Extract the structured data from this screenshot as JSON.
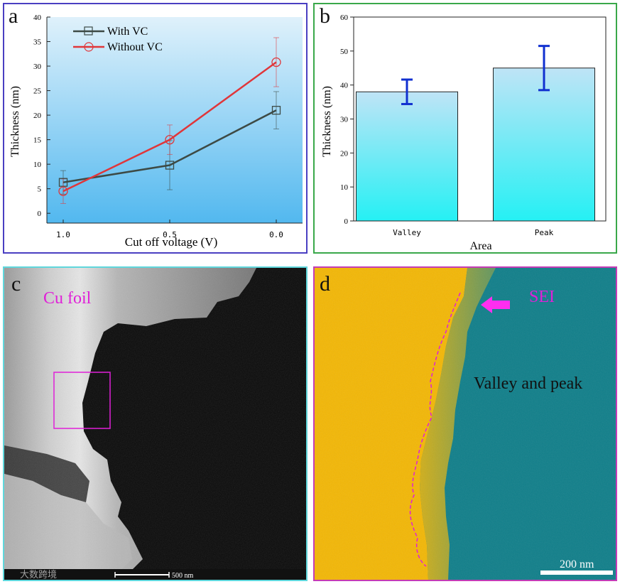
{
  "panels": {
    "a": {
      "letter": "a"
    },
    "b": {
      "letter": "b"
    },
    "c": {
      "letter": "c",
      "label": "Cu foil",
      "scalebar": "500 nm",
      "watermark": "大数跨境"
    },
    "d": {
      "letter": "d",
      "arrow_label": "SEI",
      "caption": "Valley and peak",
      "scalebar": "200 nm"
    }
  },
  "colors": {
    "with_vc": "#3d4a45",
    "without_vc": "#e0363a",
    "bar_error": "#1030d0",
    "bar_top": "#bfe4f6",
    "bar_bottom": "#25f0f4",
    "magenta": "#e020d8",
    "gold": "#f2b707",
    "teal": "#117f8a"
  },
  "chart_data": [
    {
      "type": "line",
      "xlabel": "Cut off voltage (V)",
      "ylabel": "Thickness (nm)",
      "categories": [
        "1.0",
        "0.5",
        "0.0"
      ],
      "ylim": [
        -2,
        40
      ],
      "yticks": [
        0,
        5,
        10,
        15,
        20,
        25,
        30,
        35,
        40
      ],
      "legend": "top-left",
      "series": [
        {
          "name": "With VC",
          "marker": "square",
          "values": [
            6.3,
            9.8,
            21.0
          ],
          "errors": [
            2.4,
            5.0,
            3.8
          ]
        },
        {
          "name": "Without VC",
          "marker": "circle",
          "values": [
            4.5,
            15.0,
            30.8
          ],
          "errors": [
            2.5,
            3.0,
            5.0
          ]
        }
      ]
    },
    {
      "type": "bar",
      "xlabel": "Area",
      "ylabel": "Thickness (nm)",
      "categories": [
        "Valley",
        "Peak"
      ],
      "values": [
        38,
        45
      ],
      "errors": [
        3.6,
        6.5
      ],
      "ylim": [
        0,
        60
      ],
      "yticks": [
        0,
        10,
        20,
        30,
        40,
        50,
        60
      ]
    }
  ]
}
